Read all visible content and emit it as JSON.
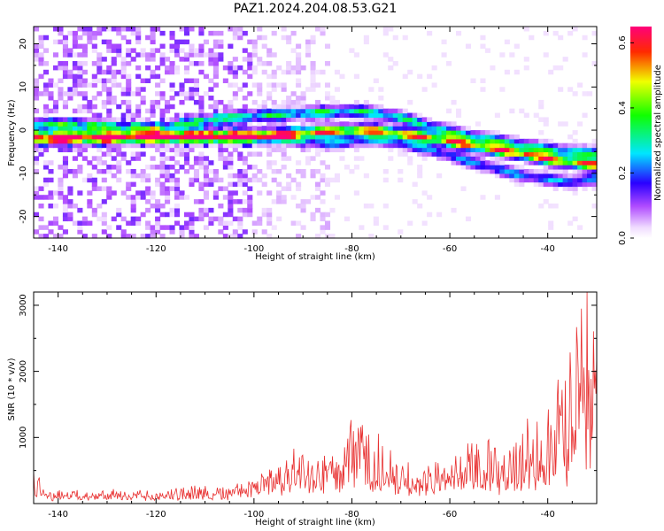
{
  "title": "PAZ1.2024.204.08.53.G21",
  "chart_data": [
    {
      "type": "heatmap",
      "xlabel": "Height of straight line (km)",
      "ylabel": "Frequency (Hz)",
      "xlim": [
        -145,
        -30
      ],
      "ylim": [
        -25,
        24
      ],
      "x_ticks": [
        -140,
        -120,
        -100,
        -80,
        -60,
        -40
      ],
      "y_ticks": [
        -20,
        -10,
        0,
        10,
        20
      ],
      "colorbar": {
        "label": "Normalized spectral amplitude",
        "range": [
          0,
          0.65
        ],
        "ticks": [
          "0.0",
          "0.2",
          "0.4",
          "0.6"
        ],
        "colormap": "rainbow (white-violet-blue-cyan-green-yellow-red-pink)"
      },
      "ridges": [
        {
          "points": [
            [
              -144,
              -2
            ],
            [
              -110,
              -1.5
            ],
            [
              -100,
              -1.5
            ],
            [
              -90,
              -0.5
            ],
            [
              -80,
              0
            ],
            [
              -75,
              0
            ],
            [
              -65,
              -1.5
            ],
            [
              -55,
              -3.5
            ],
            [
              -45,
              -5.5
            ],
            [
              -38,
              -7
            ],
            [
              -30,
              -8
            ]
          ],
          "peak": 0.62
        },
        {
          "points": [
            [
              -144,
              1.5
            ],
            [
              -120,
              0.5
            ],
            [
              -105,
              3
            ],
            [
              -90,
              4
            ],
            [
              -78,
              4.5
            ],
            [
              -70,
              3
            ],
            [
              -60,
              -0.5
            ],
            [
              -50,
              -2.5
            ],
            [
              -40,
              -4.5
            ],
            [
              -30,
              -5.5
            ]
          ],
          "peak": 0.35
        },
        {
          "points": [
            [
              -100,
              -1
            ],
            [
              -85,
              -3
            ],
            [
              -75,
              -2
            ],
            [
              -65,
              -4
            ],
            [
              -55,
              -7.5
            ],
            [
              -45,
              -10.5
            ],
            [
              -35,
              -12
            ],
            [
              -30,
              -11
            ]
          ],
          "peak": 0.25
        }
      ],
      "hotspots": [
        {
          "x": -75,
          "y": 0,
          "value": 0.65
        },
        {
          "x": -44,
          "y": -5.5,
          "value": 0.6
        }
      ]
    },
    {
      "type": "line",
      "xlabel": "Height of straight line (km)",
      "ylabel": "SNR (10 * v/v)",
      "xlim": [
        -145,
        -30
      ],
      "ylim": [
        0,
        3200
      ],
      "x_ticks": [
        -140,
        -120,
        -100,
        -80,
        -60,
        -40
      ],
      "y_ticks": [
        1000,
        2000,
        3000
      ],
      "line_color": "#e83030",
      "envelope": [
        {
          "x": -145,
          "base": 100,
          "amp": 400
        },
        {
          "x": -142,
          "base": 80,
          "amp": 120
        },
        {
          "x": -120,
          "base": 70,
          "amp": 110
        },
        {
          "x": -112,
          "base": 80,
          "amp": 180
        },
        {
          "x": -105,
          "base": 80,
          "amp": 150
        },
        {
          "x": -100,
          "base": 150,
          "amp": 300
        },
        {
          "x": -92,
          "base": 250,
          "amp": 550
        },
        {
          "x": -84,
          "base": 250,
          "amp": 500
        },
        {
          "x": -80,
          "base": 350,
          "amp": 850
        },
        {
          "x": -74,
          "base": 300,
          "amp": 800
        },
        {
          "x": -70,
          "base": 180,
          "amp": 400
        },
        {
          "x": -62,
          "base": 200,
          "amp": 500
        },
        {
          "x": -56,
          "base": 250,
          "amp": 850
        },
        {
          "x": -50,
          "base": 250,
          "amp": 600
        },
        {
          "x": -44,
          "base": 300,
          "amp": 900
        },
        {
          "x": -40,
          "base": 400,
          "amp": 1400
        },
        {
          "x": -36,
          "base": 500,
          "amp": 1800
        },
        {
          "x": -34,
          "base": 800,
          "amp": 2500
        },
        {
          "x": -31,
          "base": 1000,
          "amp": 2000
        },
        {
          "x": -30,
          "base": 1200,
          "amp": 2000
        }
      ],
      "n_samples": 700
    }
  ]
}
